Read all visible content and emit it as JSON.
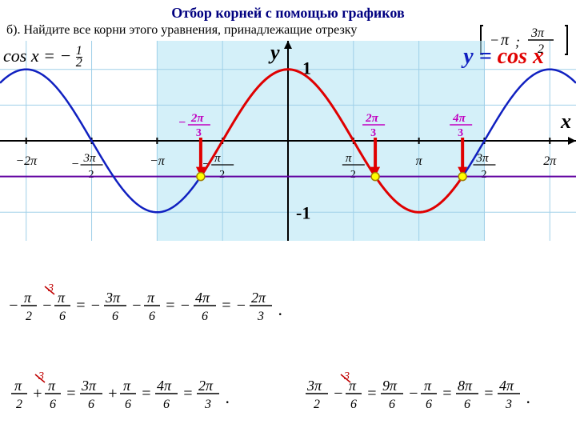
{
  "title": "Отбор корней с помощью графиков",
  "subtitle": "б). Найдите все корни этого уравнения, принадлежащие отрезку",
  "interval": "[ −π ; 3π⁄2 ]",
  "equation": "cos x = −½",
  "curve_label": "y = cos x",
  "axis": {
    "y": "y",
    "x": "x",
    "one": "1",
    "neg_one": "-1"
  },
  "chart": {
    "type": "function-plot",
    "x_range_pi": [
      -2.2,
      2.2
    ],
    "y_range": [
      -1.4,
      1.4
    ],
    "grid_step_x_pi": 0.5,
    "grid_step_y": 0.5,
    "grid_color": "#9fcfe8",
    "grid_width": 1,
    "background": "#ffffff",
    "highlight_band": {
      "from_pi": -1,
      "to_pi": 1.5,
      "fill": "#b8e6f5",
      "opacity": 0.6
    },
    "cos_curve": {
      "color": "#1020c0",
      "width": 2.5
    },
    "arc_curve": {
      "color": "#e00000",
      "width": 3,
      "from_pi": -0.6667,
      "to_pi": 1.3333
    },
    "horiz_line": {
      "y": -0.5,
      "color": "#6000a0",
      "width": 2
    },
    "roots_pi": [
      -0.6667,
      0.6667,
      1.3333
    ],
    "root_marker": {
      "fill": "#ffff00",
      "stroke": "#a08000",
      "r": 5
    },
    "arrows": {
      "color": "#e00000",
      "width": 4
    },
    "x_tick_labels_pi": [
      {
        "v": -2,
        "t": "−2π"
      },
      {
        "v": -1.5,
        "t": "−3π/2"
      },
      {
        "v": -1,
        "t": "−π"
      },
      {
        "v": -0.5,
        "t": "−π/2"
      },
      {
        "v": 0.5,
        "t": "π/2"
      },
      {
        "v": 1,
        "t": "π"
      },
      {
        "v": 1.5,
        "t": "3π/2"
      },
      {
        "v": 2,
        "t": "2π"
      }
    ],
    "root_labels": [
      {
        "v": -0.6667,
        "t": "−2π/3",
        "color": "#c000c0"
      },
      {
        "v": 0.6667,
        "t": "2π/3",
        "color": "#c000c0"
      },
      {
        "v": 1.3333,
        "t": "4π/3",
        "color": "#c000c0"
      }
    ]
  },
  "formulas": {
    "f1": "− π/2 − π/6 = − 3π/6 − π/6 = − 4π/6 = − 2π/3 .",
    "f2": "π/2 + π/6 = 3π/6 + π/6 = 4π/6 = 2π/3 .",
    "f3": "3π/2 − π/6 = 9π/6 − π/6 = 8π/6 = 4π/3 ."
  },
  "cancel_mark": "3"
}
